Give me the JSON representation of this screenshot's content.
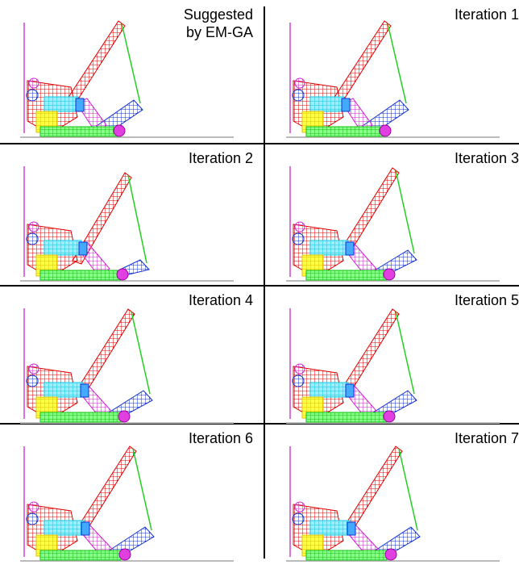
{
  "panels": [
    {
      "label_lines": [
        "Suggested",
        "by EM-GA"
      ]
    },
    {
      "label_lines": [
        "Iteration 1"
      ]
    },
    {
      "label_lines": [
        "Iteration 2"
      ]
    },
    {
      "label_lines": [
        "Iteration 3"
      ]
    },
    {
      "label_lines": [
        "Iteration 4"
      ]
    },
    {
      "label_lines": [
        "Iteration 5"
      ]
    },
    {
      "label_lines": [
        "Iteration 6"
      ]
    },
    {
      "label_lines": [
        "Iteration 7"
      ]
    }
  ]
}
